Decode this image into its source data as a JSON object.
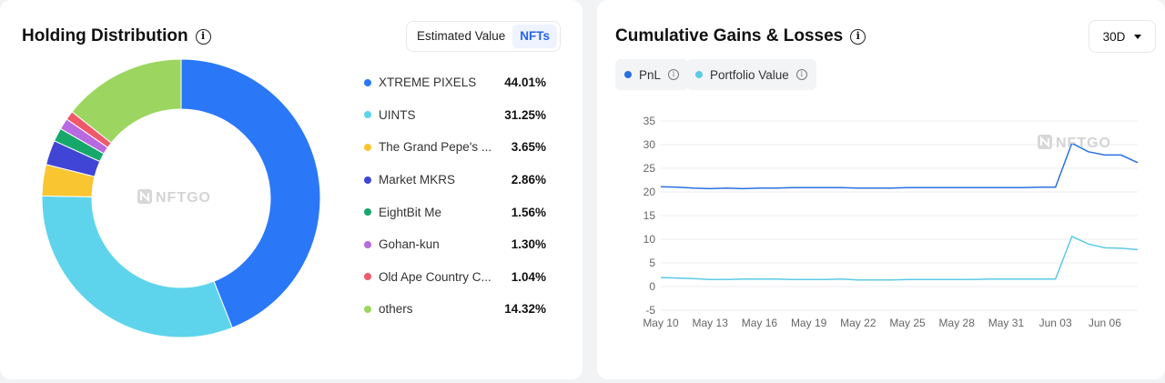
{
  "holding": {
    "title": "Holding Distribution",
    "toggle": [
      "Estimated Value",
      "NFTs"
    ],
    "active_toggle": "NFTs",
    "watermark": "NFTGO"
  },
  "gains": {
    "title": "Cumulative Gains & Losses",
    "range": "30D",
    "watermark": "NFTGO"
  },
  "chart_data": [
    {
      "type": "pie",
      "donut": true,
      "labels": [
        "XTREME PIXELS",
        "UINTS",
        "The Grand Pepe's ...",
        "Market MKRS",
        "EightBit Me",
        "Gohan-kun",
        "Old Ape Country C...",
        "others"
      ],
      "display": [
        "44.01%",
        "31.25%",
        "3.65%",
        "2.86%",
        "1.56%",
        "1.30%",
        "1.04%",
        "14.32%"
      ],
      "values": [
        44.01,
        31.25,
        3.65,
        2.86,
        1.56,
        1.3,
        1.04,
        14.32
      ],
      "colors": [
        "#2a78f7",
        "#5dd4ec",
        "#f9c530",
        "#4145d6",
        "#16a86a",
        "#b86ae0",
        "#ef5a6a",
        "#9cd660"
      ]
    },
    {
      "type": "line",
      "x_labels": [
        "May 10",
        "May 13",
        "May 16",
        "May 19",
        "May 22",
        "May 25",
        "May 28",
        "May 31",
        "Jun 03",
        "Jun 06"
      ],
      "y_ticks": [
        -5,
        0,
        5,
        10,
        15,
        20,
        25,
        30,
        35
      ],
      "ylim": [
        -5,
        35
      ],
      "grid": true,
      "series": [
        {
          "name": "PnL",
          "color": "#2a6fe0",
          "values": [
            21.1,
            21.0,
            20.8,
            20.7,
            20.8,
            20.7,
            20.8,
            20.8,
            20.9,
            20.9,
            20.9,
            20.9,
            20.8,
            20.8,
            20.8,
            20.9,
            20.9,
            20.9,
            20.9,
            20.9,
            20.9,
            20.9,
            20.9,
            21.0,
            21.0,
            30.3,
            28.5,
            27.8,
            27.8,
            26.2
          ]
        },
        {
          "name": "Portfolio Value",
          "color": "#5ccae6",
          "values": [
            1.9,
            1.8,
            1.7,
            1.5,
            1.5,
            1.6,
            1.6,
            1.6,
            1.5,
            1.5,
            1.5,
            1.6,
            1.4,
            1.4,
            1.4,
            1.5,
            1.5,
            1.5,
            1.5,
            1.5,
            1.6,
            1.6,
            1.6,
            1.6,
            1.6,
            10.6,
            9.0,
            8.2,
            8.1,
            7.8
          ]
        }
      ]
    }
  ]
}
